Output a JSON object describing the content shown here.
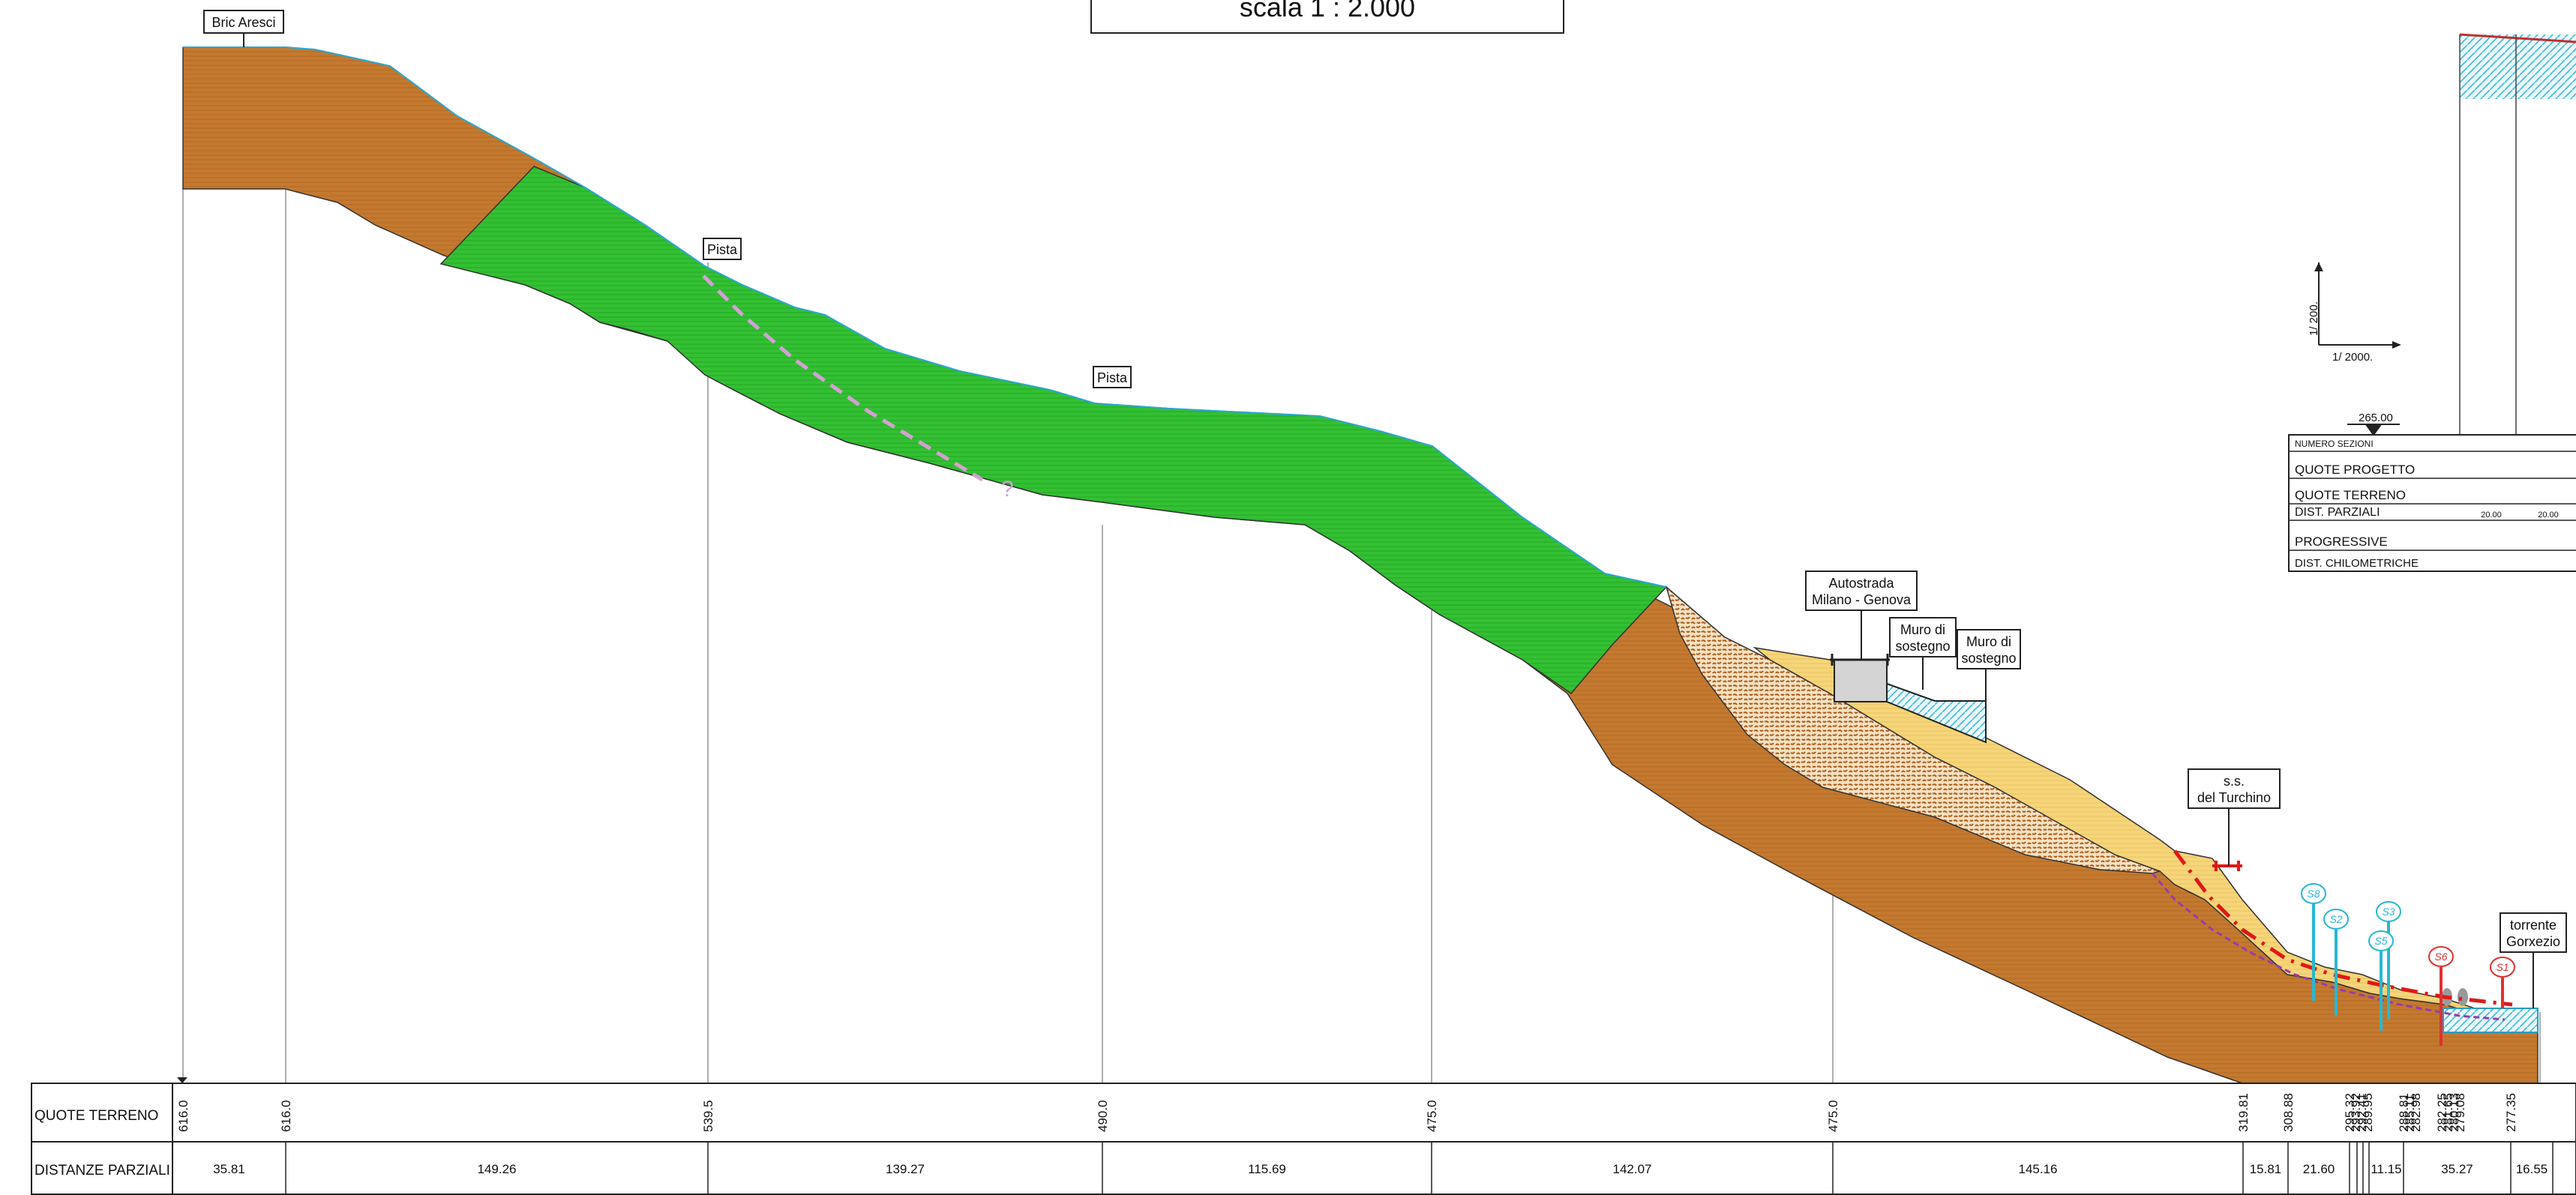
{
  "header": {
    "scale_text": "scala 1 : 2.000"
  },
  "labels": {
    "bric": "Bric Aresci",
    "pista1": "Pista",
    "pista2": "Pista",
    "autostrada_l1": "Autostrada",
    "autostrada_l2": "Milano - Genova",
    "muro1_l1": "Muro di",
    "muro1_l2": "sostegno",
    "muro2_l1": "Muro di",
    "muro2_l2": "sostegno",
    "ss_l1": "s.s.",
    "ss_l2": "del Turchino",
    "torrente_l1": "torrente",
    "torrente_l2": "Gorxezio",
    "question": "?"
  },
  "boreholes": [
    "S8",
    "S2",
    "S3",
    "S5",
    "S6",
    "S1"
  ],
  "legend": {
    "vscale": "1/  200.",
    "hscale": "1/  2000.",
    "datum": "265.00",
    "rows": [
      "NUMERO SEZIONI",
      "QUOTE PROGETTO",
      "QUOTE TERRENO",
      "DIST. PARZIALI",
      "PROGRESSIVE",
      "DIST. CHILOMETRICHE"
    ],
    "parz": [
      "20.00",
      "20.00"
    ]
  },
  "table": {
    "row1_label": "QUOTE TERRENO",
    "row2_label": "DISTANZE PARZIALI",
    "elevations": [
      "616.0",
      "616.0",
      "539.5",
      "490.0",
      "475.0",
      "475.0",
      "319.81",
      "308.88",
      "295.32",
      "293.92",
      "292.41",
      "289.95",
      "288.81",
      "285.11",
      "282.98",
      "282.25",
      "281.65",
      "280.13",
      "279.08",
      "277.35"
    ],
    "distances": [
      "35.81",
      "149.26",
      "139.27",
      "115.69",
      "142.07",
      "145.16",
      "15.81",
      "21.60",
      "",
      "",
      "",
      "11.15",
      "35.27",
      "16.55"
    ]
  },
  "colors": {
    "soil_brown": "#c4792f",
    "green_layer": "#33c033",
    "sand_yellow": "#f6d57a",
    "gravel": "#c98a4a",
    "water_cyan": "#3ab8d8",
    "red_line": "#e01818",
    "purple_line": "#9a3ab0",
    "borehole_red": "#e03030",
    "borehole_cyan": "#28b8d0"
  }
}
